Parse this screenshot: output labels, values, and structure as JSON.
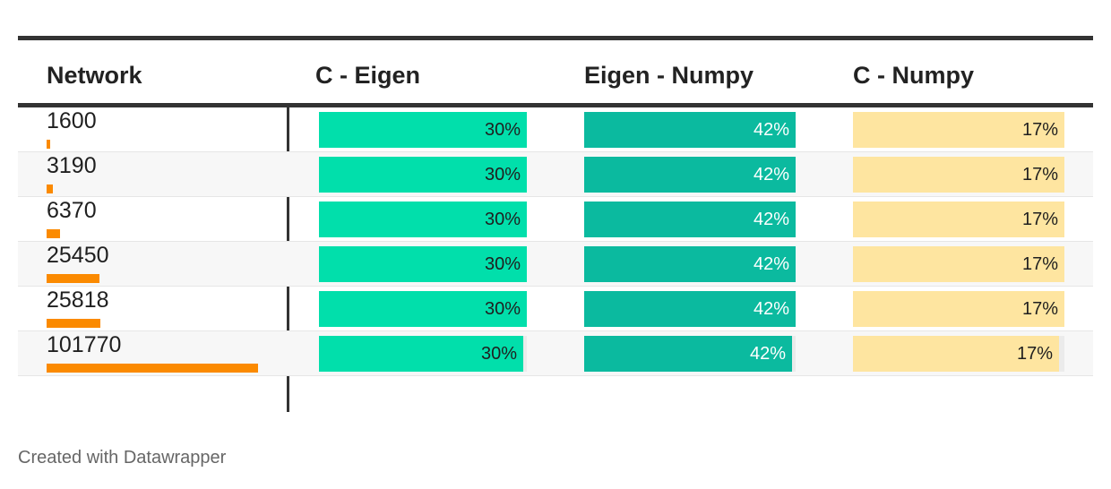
{
  "table": {
    "headers": [
      "Network",
      "C - Eigen",
      "Eigen - Numpy",
      "C - Numpy"
    ]
  },
  "chart_data": {
    "type": "table",
    "columns": [
      "Network",
      "C - Eigen",
      "Eigen - Numpy",
      "C - Numpy"
    ],
    "rows": [
      {
        "network": "1600",
        "c_eigen": "30%",
        "eigen_numpy": "42%",
        "c_numpy": "17%"
      },
      {
        "network": "3190",
        "c_eigen": "30%",
        "eigen_numpy": "42%",
        "c_numpy": "17%"
      },
      {
        "network": "6370",
        "c_eigen": "30%",
        "eigen_numpy": "42%",
        "c_numpy": "17%"
      },
      {
        "network": "25450",
        "c_eigen": "30%",
        "eigen_numpy": "42%",
        "c_numpy": "17%"
      },
      {
        "network": "25818",
        "c_eigen": "30%",
        "eigen_numpy": "42%",
        "c_numpy": "17%"
      },
      {
        "network": "101770",
        "c_eigen": "30%",
        "eigen_numpy": "42%",
        "c_numpy": "17%"
      }
    ],
    "network_bar_color": "#fb8a00",
    "column_colors": {
      "c_eigen": "#01dfab",
      "eigen_numpy": "#0bba9f",
      "c_numpy": "#fee5a0"
    }
  },
  "footer": {
    "credit": "Created with Datawrapper"
  }
}
